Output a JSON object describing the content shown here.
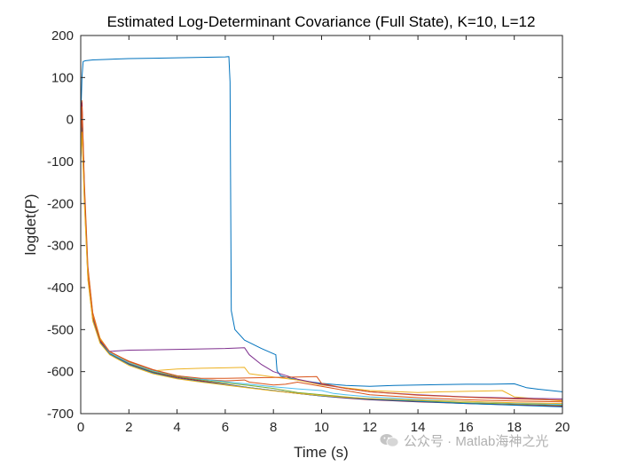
{
  "chart_data": {
    "type": "line",
    "title": "Estimated Log-Determinant Covariance (Full State), K=10, L=12",
    "xlabel": "Time (s)",
    "ylabel": "logdet(P)",
    "xlim": [
      0,
      20
    ],
    "ylim": [
      -700,
      200
    ],
    "xticks": [
      0,
      2,
      4,
      6,
      8,
      10,
      12,
      14,
      16,
      18,
      20
    ],
    "yticks": [
      200,
      100,
      0,
      -100,
      -200,
      -300,
      -400,
      -500,
      -600,
      -700
    ],
    "grid": false,
    "legend": "none",
    "series": [
      {
        "color": "#0072BD",
        "x": [
          0,
          0.05,
          0.1,
          0.2,
          0.5,
          1,
          2,
          3,
          4,
          5,
          6,
          6.15,
          6.2,
          6.25,
          6.4,
          6.8,
          7.5,
          8.1,
          8.15,
          8.3,
          9,
          10,
          11,
          12,
          13,
          14,
          15,
          16,
          17,
          18,
          18.5,
          19,
          20
        ],
        "y": [
          0,
          100,
          138,
          140,
          142,
          143,
          145,
          146,
          147,
          148,
          149,
          150,
          90,
          -455,
          -500,
          -525,
          -545,
          -560,
          -598,
          -610,
          -620,
          -628,
          -633,
          -635,
          -633,
          -632,
          -631,
          -630,
          -630,
          -629,
          -638,
          -642,
          -648
        ]
      },
      {
        "color": "#D95319",
        "x": [
          0,
          0.05,
          0.15,
          0.3,
          0.5,
          0.8,
          1.2,
          2,
          3,
          4,
          5,
          6,
          6.8,
          7,
          8,
          8.5,
          9,
          10,
          11,
          12,
          14,
          16,
          18,
          20
        ],
        "y": [
          -20,
          45,
          -150,
          -350,
          -460,
          -520,
          -553,
          -575,
          -595,
          -610,
          -618,
          -622,
          -620,
          -625,
          -632,
          -630,
          -625,
          -635,
          -645,
          -655,
          -662,
          -667,
          -670,
          -672
        ]
      },
      {
        "color": "#EDB120",
        "x": [
          0,
          0.05,
          0.15,
          0.3,
          0.5,
          0.8,
          1.2,
          2,
          3,
          4,
          5,
          6,
          6.8,
          7,
          8,
          9,
          10,
          12,
          14,
          15,
          16,
          17,
          17.5,
          18,
          20
        ],
        "y": [
          -30,
          20,
          -160,
          -360,
          -465,
          -520,
          -555,
          -577,
          -598,
          -594,
          -592,
          -591,
          -590,
          -605,
          -613,
          -620,
          -632,
          -645,
          -650,
          -648,
          -647,
          -646,
          -645,
          -660,
          -670
        ]
      },
      {
        "color": "#7E2F8E",
        "x": [
          0,
          0.05,
          0.15,
          0.3,
          0.5,
          0.8,
          1.1,
          1.2,
          2,
          3,
          4,
          5,
          6,
          6.8,
          7,
          7.5,
          8,
          9,
          10,
          11,
          12,
          14,
          16,
          18,
          20
        ],
        "y": [
          -40,
          10,
          -170,
          -370,
          -470,
          -525,
          -550,
          -552,
          -549,
          -548,
          -547,
          -546,
          -545,
          -543,
          -560,
          -583,
          -600,
          -618,
          -630,
          -640,
          -648,
          -655,
          -660,
          -663,
          -665
        ]
      },
      {
        "color": "#77AC30",
        "x": [
          0,
          0.05,
          0.15,
          0.3,
          0.5,
          0.8,
          1.2,
          2,
          3,
          4,
          5,
          6,
          7,
          8,
          9,
          10,
          11,
          12,
          14,
          16,
          18,
          20
        ],
        "y": [
          -60,
          0,
          -180,
          -375,
          -475,
          -528,
          -556,
          -580,
          -600,
          -612,
          -620,
          -627,
          -633,
          -640,
          -650,
          -655,
          -660,
          -665,
          -670,
          -674,
          -677,
          -680
        ]
      },
      {
        "color": "#4DBEEE",
        "x": [
          0,
          0.05,
          0.15,
          0.3,
          0.5,
          0.8,
          1.2,
          2,
          3,
          4,
          5,
          6,
          7,
          8,
          9,
          10,
          10.5,
          11,
          12,
          14,
          16,
          18,
          20
        ],
        "y": [
          -50,
          5,
          -175,
          -372,
          -472,
          -526,
          -555,
          -579,
          -598,
          -610,
          -618,
          -624,
          -630,
          -636,
          -641,
          -645,
          -652,
          -655,
          -660,
          -666,
          -671,
          -675,
          -678
        ]
      },
      {
        "color": "#A2142F",
        "x": [
          0,
          0.05,
          0.15,
          0.3,
          0.5,
          0.8,
          1.2,
          2,
          3,
          4,
          5,
          6,
          7,
          8,
          9,
          10,
          11,
          12,
          14,
          16,
          18,
          20
        ],
        "y": [
          -80,
          40,
          -165,
          -368,
          -470,
          -527,
          -558,
          -582,
          -602,
          -614,
          -622,
          -630,
          -638,
          -645,
          -652,
          -658,
          -663,
          -667,
          -672,
          -676,
          -679,
          -682
        ]
      },
      {
        "color": "#0072BD",
        "x": [
          0,
          0.05,
          0.15,
          0.3,
          0.5,
          0.8,
          1.2,
          2,
          3,
          4,
          5,
          6,
          7,
          8,
          9,
          10,
          11,
          12,
          14,
          16,
          18,
          20
        ],
        "y": [
          -90,
          -20,
          -190,
          -378,
          -478,
          -530,
          -558,
          -583,
          -603,
          -616,
          -624,
          -631,
          -638,
          -645,
          -652,
          -658,
          -662,
          -666,
          -671,
          -676,
          -680,
          -684
        ]
      },
      {
        "color": "#D95319",
        "x": [
          0,
          0.05,
          0.15,
          0.3,
          0.5,
          0.8,
          1.2,
          2,
          3,
          4,
          5,
          6,
          7,
          8,
          9,
          9.8,
          10,
          11,
          12,
          14,
          16,
          18,
          20
        ],
        "y": [
          -70,
          30,
          -170,
          -365,
          -468,
          -524,
          -552,
          -576,
          -596,
          -610,
          -616,
          -616,
          -615,
          -614,
          -613,
          -612,
          -628,
          -640,
          -648,
          -656,
          -661,
          -665,
          -668
        ]
      },
      {
        "color": "#EDB120",
        "x": [
          0,
          0.05,
          0.15,
          0.3,
          0.5,
          0.8,
          1.2,
          2,
          3,
          4,
          5,
          6,
          7,
          8,
          9,
          10,
          11,
          12,
          14,
          16,
          18,
          20
        ],
        "y": [
          -100,
          -30,
          -200,
          -382,
          -480,
          -532,
          -560,
          -585,
          -605,
          -617,
          -625,
          -632,
          -639,
          -646,
          -652,
          -657,
          -661,
          -664,
          -668,
          -671,
          -674,
          -676
        ]
      }
    ]
  },
  "watermark": {
    "text": "公众号 · Matlab海神之光",
    "icon": "wechat-icon",
    "color": "#b0b0b0"
  }
}
